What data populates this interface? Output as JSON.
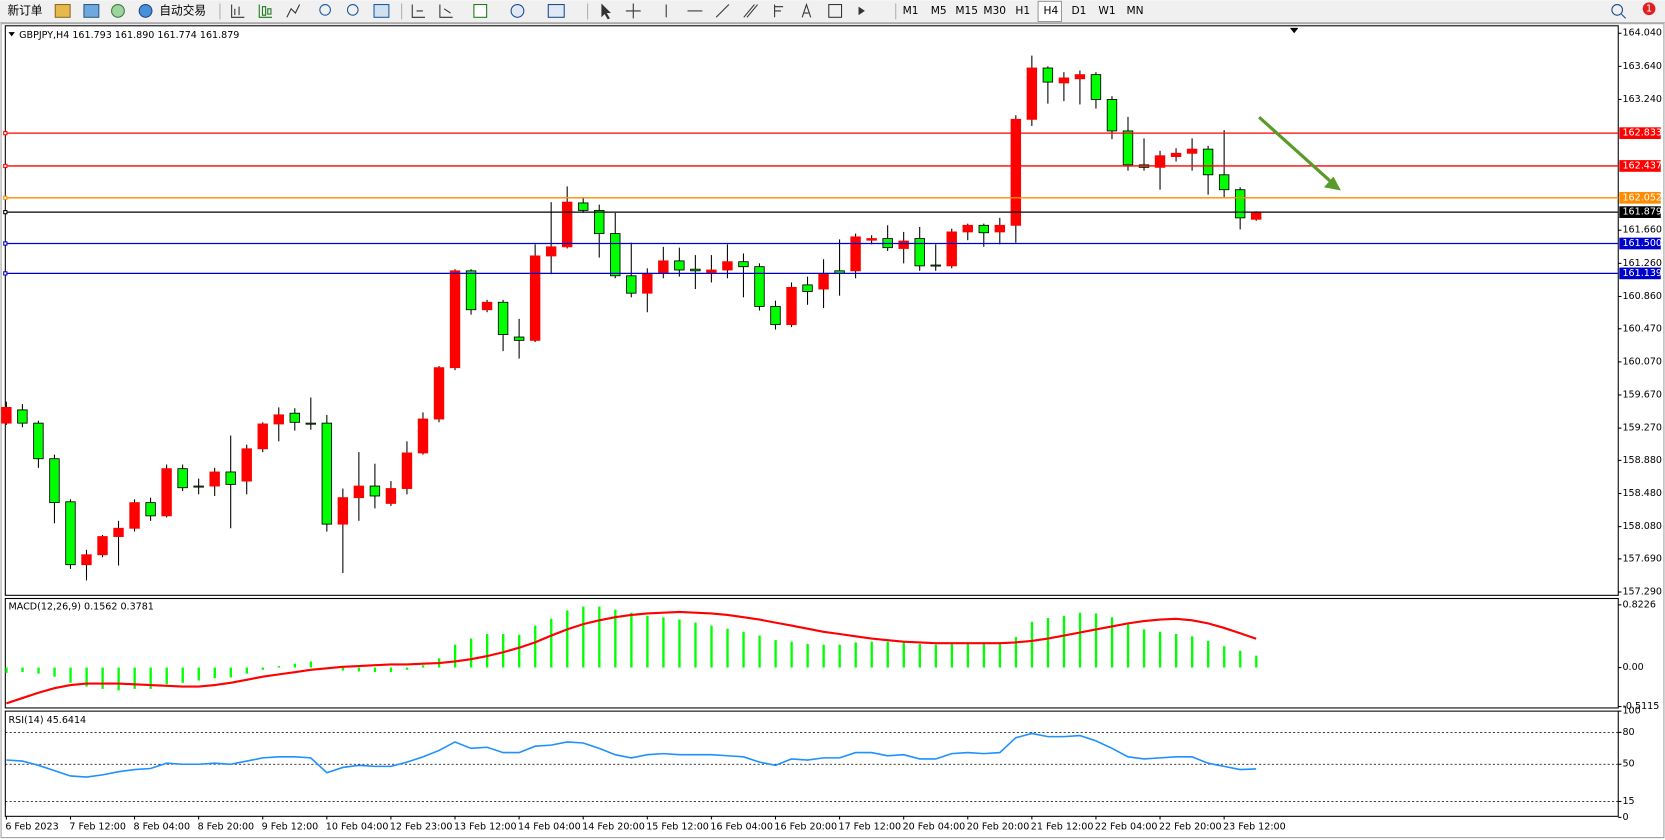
{
  "toolbar": {
    "new_order": "新订单",
    "auto_trading": "自动交易",
    "timeframes": [
      "M1",
      "M5",
      "M15",
      "M30",
      "H1",
      "H4",
      "D1",
      "W1",
      "MN"
    ],
    "notifications": "1"
  },
  "chart_data": [
    {
      "type": "candlestick",
      "title": "GBPJPY,H4  161.793 161.890 161.774 161.879",
      "categories": [
        "6 Feb 2023",
        null,
        null,
        null,
        "7 Feb 12:00",
        null,
        null,
        null,
        "8 Feb 04:00",
        null,
        null,
        null,
        "8 Feb 20:00",
        null,
        null,
        null,
        "9 Feb 12:00",
        null,
        null,
        null,
        "10 Feb 04:00",
        null,
        null,
        null,
        "12 Feb 23:00",
        null,
        null,
        null,
        "13 Feb 12:00",
        null,
        null,
        null,
        "14 Feb 04:00",
        null,
        null,
        null,
        "14 Feb 20:00",
        null,
        null,
        null,
        "15 Feb 12:00",
        null,
        null,
        null,
        "16 Feb 04:00",
        null,
        null,
        null,
        "16 Feb 20:00",
        null,
        null,
        null,
        "17 Feb 12:00",
        null,
        null,
        null,
        "20 Feb 04:00",
        null,
        null,
        null,
        "20 Feb 20:00",
        null,
        null,
        null,
        "21 Feb 12:00",
        null,
        null,
        null,
        "22 Feb 04:00",
        null,
        null,
        null,
        "22 Feb 20:00",
        null,
        null,
        null,
        "23 Feb 12:00",
        null,
        null
      ],
      "open": [
        159.33,
        159.49,
        159.33,
        158.9,
        158.38,
        157.62,
        157.74,
        157.96,
        158.06,
        158.37,
        158.21,
        158.78,
        158.57,
        158.57,
        158.74,
        158.63,
        159.02,
        159.32,
        159.45,
        159.33,
        159.33,
        158.11,
        158.43,
        158.57,
        158.36,
        158.54,
        158.97,
        159.38,
        160.0,
        161.17,
        160.7,
        160.79,
        160.37,
        160.33,
        161.35,
        161.46,
        161.99,
        161.9,
        161.62,
        161.11,
        160.9,
        161.14,
        161.29,
        161.19,
        161.15,
        161.18,
        161.28,
        161.22,
        160.74,
        160.52,
        161.0,
        160.95,
        161.17,
        161.17,
        161.54,
        161.56,
        161.44,
        161.56,
        161.24,
        161.23,
        161.64,
        161.72,
        161.64,
        161.72,
        163.0,
        163.62,
        163.44,
        163.49,
        163.54,
        163.24,
        162.86,
        162.45,
        162.42,
        162.55,
        162.59,
        162.64,
        162.33,
        162.15,
        161.793
      ],
      "high": [
        159.59,
        159.56,
        159.36,
        158.95,
        158.41,
        157.8,
        157.98,
        158.15,
        158.41,
        158.43,
        158.83,
        158.83,
        158.66,
        158.79,
        159.18,
        159.07,
        159.34,
        159.52,
        159.51,
        159.64,
        159.43,
        158.54,
        158.98,
        158.84,
        158.63,
        159.11,
        159.46,
        160.02,
        161.19,
        161.19,
        160.82,
        160.82,
        160.59,
        161.49,
        162.0,
        162.19,
        162.06,
        161.97,
        161.87,
        161.51,
        161.2,
        161.46,
        161.45,
        161.36,
        161.36,
        161.49,
        161.38,
        161.26,
        160.81,
        161.03,
        161.1,
        161.31,
        161.55,
        161.62,
        161.6,
        161.72,
        161.64,
        161.7,
        161.49,
        161.68,
        161.74,
        161.74,
        161.81,
        163.05,
        163.77,
        163.64,
        163.57,
        163.59,
        163.57,
        163.28,
        163.03,
        162.77,
        162.62,
        162.65,
        162.77,
        162.68,
        162.87,
        162.18,
        161.89
      ],
      "low": [
        159.31,
        159.28,
        158.79,
        158.12,
        157.57,
        157.43,
        157.71,
        157.61,
        158.02,
        158.15,
        158.19,
        158.51,
        158.47,
        158.45,
        158.06,
        158.47,
        158.98,
        159.11,
        159.24,
        159.25,
        158.02,
        157.52,
        158.15,
        158.3,
        158.33,
        158.47,
        158.95,
        159.34,
        159.97,
        160.64,
        160.67,
        160.2,
        160.11,
        160.31,
        161.13,
        161.44,
        161.87,
        161.33,
        161.08,
        160.85,
        160.67,
        161.08,
        161.1,
        160.95,
        161.03,
        161.08,
        160.85,
        160.69,
        160.46,
        160.49,
        160.76,
        160.72,
        160.87,
        161.08,
        161.49,
        161.41,
        161.26,
        161.17,
        161.17,
        161.2,
        161.54,
        161.46,
        161.49,
        161.51,
        162.92,
        163.19,
        163.22,
        163.18,
        163.13,
        162.76,
        162.38,
        162.38,
        162.15,
        162.49,
        162.38,
        162.09,
        162.06,
        161.67,
        161.774
      ],
      "close": [
        159.52,
        159.33,
        158.9,
        158.37,
        157.62,
        157.74,
        157.96,
        158.06,
        158.37,
        158.21,
        158.78,
        158.55,
        158.57,
        158.74,
        158.59,
        159.02,
        159.32,
        159.43,
        159.34,
        159.33,
        158.11,
        158.43,
        158.57,
        158.45,
        158.54,
        158.97,
        159.38,
        160.0,
        161.17,
        160.7,
        160.79,
        160.4,
        160.33,
        161.35,
        161.46,
        162.0,
        161.9,
        161.62,
        161.11,
        160.9,
        161.14,
        161.29,
        161.18,
        161.17,
        161.18,
        161.28,
        161.22,
        160.74,
        160.52,
        160.97,
        160.92,
        161.14,
        161.14,
        161.58,
        161.56,
        161.45,
        161.53,
        161.23,
        161.23,
        161.64,
        161.72,
        161.63,
        161.72,
        163.0,
        163.62,
        163.45,
        163.5,
        163.54,
        163.24,
        162.86,
        162.45,
        162.42,
        162.56,
        162.59,
        162.64,
        162.33,
        162.15,
        161.81,
        161.879
      ],
      "up_color": "#ff0000",
      "down_color": "#00ff00",
      "down_outline": "#000000",
      "wick_color": "#000000",
      "ylim": [
        157.25,
        164.13
      ],
      "yticks": [
        {
          "value": 164.04,
          "label": "164.040"
        },
        {
          "value": 163.64,
          "label": "163.640"
        },
        {
          "value": 163.24,
          "label": "163.240"
        },
        {
          "value": 161.66,
          "label": "161.660"
        },
        {
          "value": 161.26,
          "label": "161.260"
        },
        {
          "value": 160.86,
          "label": "160.860"
        },
        {
          "value": 160.47,
          "label": "160.470"
        },
        {
          "value": 160.07,
          "label": "160.070"
        },
        {
          "value": 159.67,
          "label": "159.670"
        },
        {
          "value": 159.27,
          "label": "159.270"
        },
        {
          "value": 158.88,
          "label": "158.880"
        },
        {
          "value": 158.48,
          "label": "158.480"
        },
        {
          "value": 158.08,
          "label": "158.080"
        },
        {
          "value": 157.69,
          "label": "157.690"
        },
        {
          "value": 157.29,
          "label": "157.290"
        }
      ],
      "levels": [
        {
          "value": 162.833,
          "color": "#ff0000"
        },
        {
          "value": 162.437,
          "color": "#ff0000"
        },
        {
          "value": 162.052,
          "color": "#ff8c00"
        },
        {
          "value": 161.879,
          "color": "#000000"
        },
        {
          "value": 161.5,
          "label": "161.500",
          "color": "#0000cd"
        },
        {
          "value": 161.139,
          "color": "#0000cd"
        }
      ]
    },
    {
      "type": "macd",
      "title": "MACD(12,26,9) 0.1562 0.3781",
      "series": [
        {
          "type": "bar",
          "color": "#00ff00",
          "values": [
            -0.07,
            -0.06,
            -0.08,
            -0.12,
            -0.2,
            -0.25,
            -0.28,
            -0.3,
            -0.28,
            -0.28,
            -0.22,
            -0.2,
            -0.17,
            -0.14,
            -0.13,
            -0.08,
            -0.03,
            0.02,
            0.05,
            0.08,
            -0.02,
            -0.04,
            -0.05,
            -0.06,
            -0.06,
            -0.03,
            0.03,
            0.12,
            0.3,
            0.38,
            0.44,
            0.44,
            0.43,
            0.55,
            0.64,
            0.75,
            0.8,
            0.8,
            0.76,
            0.72,
            0.68,
            0.66,
            0.63,
            0.59,
            0.55,
            0.51,
            0.47,
            0.42,
            0.36,
            0.34,
            0.31,
            0.3,
            0.3,
            0.33,
            0.34,
            0.34,
            0.33,
            0.31,
            0.3,
            0.31,
            0.32,
            0.31,
            0.31,
            0.4,
            0.6,
            0.65,
            0.68,
            0.72,
            0.71,
            0.66,
            0.57,
            0.5,
            0.47,
            0.44,
            0.41,
            0.35,
            0.28,
            0.22,
            0.1562
          ]
        },
        {
          "type": "line",
          "color": "#ff0000",
          "values": [
            -0.47,
            -0.4,
            -0.33,
            -0.27,
            -0.23,
            -0.21,
            -0.21,
            -0.21,
            -0.22,
            -0.23,
            -0.24,
            -0.25,
            -0.25,
            -0.23,
            -0.2,
            -0.16,
            -0.12,
            -0.09,
            -0.06,
            -0.03,
            -0.01,
            0.01,
            0.02,
            0.03,
            0.04,
            0.04,
            0.05,
            0.06,
            0.08,
            0.11,
            0.15,
            0.2,
            0.26,
            0.33,
            0.42,
            0.5,
            0.57,
            0.62,
            0.66,
            0.69,
            0.71,
            0.72,
            0.73,
            0.72,
            0.71,
            0.69,
            0.66,
            0.63,
            0.59,
            0.55,
            0.51,
            0.47,
            0.44,
            0.41,
            0.38,
            0.36,
            0.34,
            0.33,
            0.32,
            0.32,
            0.32,
            0.32,
            0.32,
            0.33,
            0.35,
            0.38,
            0.42,
            0.46,
            0.5,
            0.54,
            0.58,
            0.61,
            0.63,
            0.64,
            0.62,
            0.58,
            0.52,
            0.45,
            0.3781
          ]
        }
      ],
      "ylim": [
        -0.53,
        0.906
      ],
      "yticks": [
        0.8226,
        {
          "value": 0,
          "label": "0.00"
        },
        -0.5115
      ]
    },
    {
      "type": "line",
      "title": "RSI(14) 45.6414",
      "color": "#1e90ff",
      "values": [
        54,
        53,
        49,
        44,
        39,
        38,
        40,
        43,
        45,
        46,
        51,
        50,
        50,
        51,
        50,
        53,
        56,
        57,
        57,
        56,
        42,
        47,
        49,
        48,
        48,
        52,
        57,
        63,
        71,
        65,
        66,
        61,
        61,
        67,
        68,
        71,
        70,
        65,
        59,
        56,
        59,
        60,
        59,
        59,
        59,
        58,
        57,
        52,
        49,
        55,
        54,
        56,
        56,
        61,
        61,
        58,
        59,
        55,
        55,
        60,
        61,
        60,
        61,
        75,
        79,
        76,
        76,
        77,
        72,
        65,
        57,
        55,
        56,
        57,
        57,
        51,
        48,
        45,
        45.6414
      ],
      "ylim": [
        0,
        100
      ],
      "yticks": [
        100,
        80,
        50,
        15,
        0
      ],
      "levels": [
        80,
        50,
        15
      ]
    }
  ]
}
